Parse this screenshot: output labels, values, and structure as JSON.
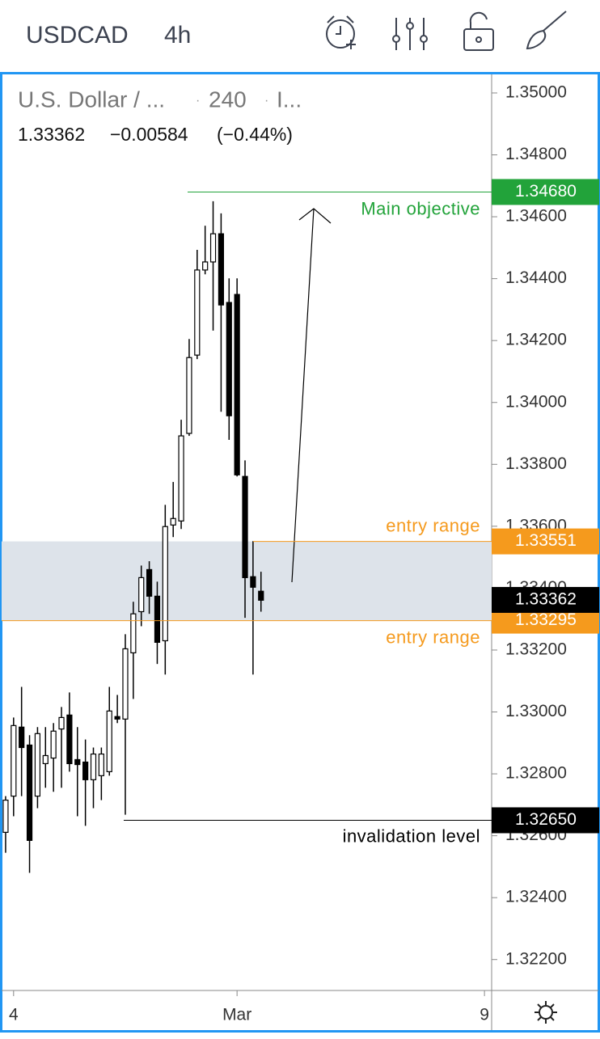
{
  "header": {
    "symbol": "USDCAD",
    "interval": "4h"
  },
  "chart_data": {
    "type": "candlestick",
    "legend": {
      "name": "U.S. Dollar / ...",
      "interval": "240",
      "extra": "I...",
      "last": "1.33362",
      "change": "−0.00584",
      "change_pct": "(−0.44%)"
    },
    "x": [
      0,
      1,
      2,
      3,
      4,
      5,
      6,
      7,
      8,
      9,
      10,
      11,
      12,
      13,
      14,
      15,
      16,
      17,
      18,
      19,
      20,
      21,
      22,
      23,
      24,
      25,
      26,
      27,
      28,
      29,
      30,
      31,
      32
    ],
    "open": [
      1.32611,
      1.32728,
      1.32951,
      1.32893,
      1.32728,
      1.32833,
      1.32851,
      1.32945,
      1.3299,
      1.32846,
      1.32838,
      1.32781,
      1.32794,
      1.32807,
      1.32985,
      1.32977,
      1.33191,
      1.33324,
      1.3346,
      1.33374,
      1.3323,
      1.33604,
      1.33617,
      1.339,
      1.34153,
      1.34428,
      1.34454,
      1.34545,
      1.34323,
      1.34349,
      1.33761,
      1.33437,
      1.3339
    ],
    "high": [
      1.32728,
      1.32982,
      1.33081,
      1.32925,
      1.32951,
      1.32951,
      1.32964,
      1.33016,
      1.33063,
      1.32951,
      1.32911,
      1.32885,
      1.32885,
      1.33081,
      1.33055,
      1.33251,
      1.33356,
      1.33473,
      1.33487,
      1.33421,
      1.33669,
      1.33743,
      1.33944,
      1.34205,
      1.34493,
      1.34571,
      1.3465,
      1.34611,
      1.34401,
      1.34401,
      1.33813,
      1.33552,
      1.33453
    ],
    "low": [
      1.32545,
      1.32663,
      1.32728,
      1.3248,
      1.32689,
      1.32755,
      1.32742,
      1.32755,
      1.32807,
      1.32663,
      1.32632,
      1.32689,
      1.32715,
      1.32794,
      1.32964,
      1.32668,
      1.33042,
      1.33277,
      1.33317,
      1.33155,
      1.33121,
      1.33565,
      1.33591,
      1.33892,
      1.3414,
      1.34414,
      1.34232,
      1.3397,
      1.33879,
      1.33761,
      1.33304,
      1.33121,
      1.33324
    ],
    "close": [
      1.32715,
      1.32956,
      1.32885,
      1.32585,
      1.3293,
      1.32859,
      1.32938,
      1.32982,
      1.32833,
      1.3283,
      1.32781,
      1.32864,
      1.32864,
      1.33003,
      1.32977,
      1.33204,
      1.33317,
      1.33434,
      1.33374,
      1.33225,
      1.33599,
      1.33625,
      1.33892,
      1.34145,
      1.34428,
      1.34454,
      1.34545,
      1.34315,
      1.33957,
      1.33766,
      1.33434,
      1.33403,
      1.33361
    ],
    "up_color": "#ffffff",
    "down_color": "#000000",
    "xlim": [
      -0.5,
      60.9
    ],
    "xticks": [
      {
        "value": 1,
        "label": "4"
      },
      {
        "value": 29,
        "label": "Mar"
      },
      {
        "value": 60,
        "label": "9"
      }
    ],
    "ylim": [
      1.321,
      1.3506
    ],
    "yticks": [
      {
        "value": 1.35,
        "label": "1.35000"
      },
      {
        "value": 1.348,
        "label": "1.34800"
      },
      {
        "value": 1.346,
        "label": "1.34600"
      },
      {
        "value": 1.344,
        "label": "1.34400"
      },
      {
        "value": 1.342,
        "label": "1.34200"
      },
      {
        "value": 1.34,
        "label": "1.34000"
      },
      {
        "value": 1.338,
        "label": "1.33800"
      },
      {
        "value": 1.336,
        "label": "1.33600"
      },
      {
        "value": 1.334,
        "label": "1.33400"
      },
      {
        "value": 1.332,
        "label": "1.33200"
      },
      {
        "value": 1.33,
        "label": "1.33000"
      },
      {
        "value": 1.328,
        "label": "1.32800"
      },
      {
        "value": 1.326,
        "label": "1.32600"
      },
      {
        "value": 1.324,
        "label": "1.32400"
      },
      {
        "value": 1.322,
        "label": "1.32200"
      }
    ],
    "levels": [
      {
        "price": 1.3468,
        "price_label": "1.34680",
        "label": "Main objective",
        "color": "#22a33a"
      },
      {
        "price": 1.33551,
        "price_label": "1.33551",
        "label": "entry range",
        "color": "#f59a1d"
      },
      {
        "price": 1.33295,
        "price_label": "1.33295",
        "label": "entry range",
        "color": "#f59a1d"
      },
      {
        "price": 1.3265,
        "price_label": "1.32650",
        "label": "invalidation level",
        "color": "#000000"
      }
    ],
    "zone_color": "#dde3ea",
    "last_price": 1.33362,
    "last_price_label": "1.33362"
  }
}
